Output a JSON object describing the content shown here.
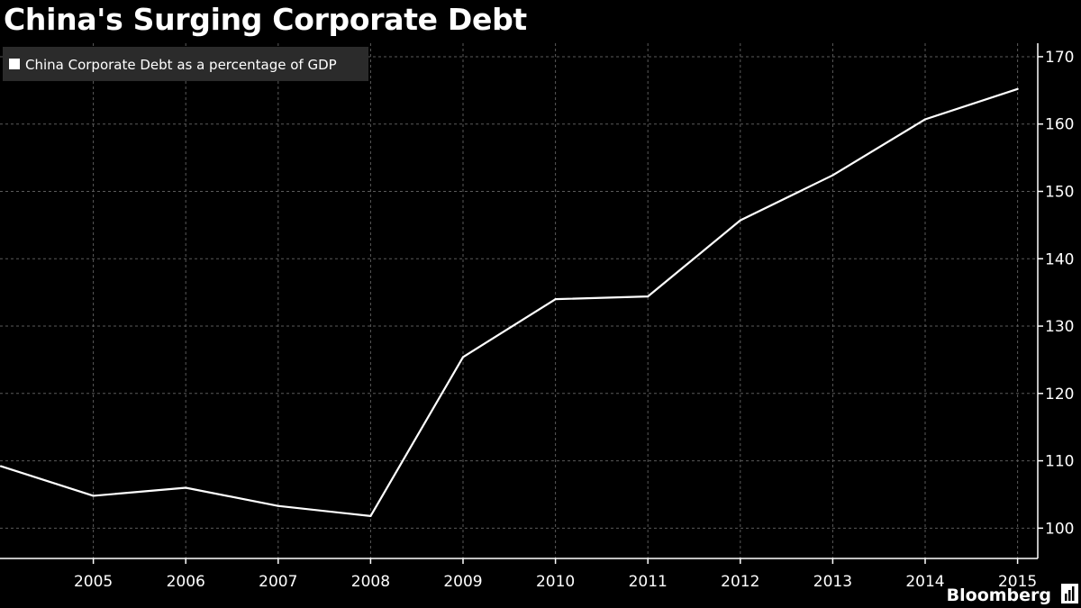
{
  "chart_data": {
    "type": "line",
    "title": "China's Surging Corporate Debt",
    "x": [
      "2004",
      "2005",
      "2006",
      "2007",
      "2008",
      "2009",
      "2010",
      "2011",
      "2012",
      "2013",
      "2014",
      "2015"
    ],
    "x_tick_labels": [
      "2005",
      "2006",
      "2007",
      "2008",
      "2009",
      "2010",
      "2011",
      "2012",
      "2013",
      "2014",
      "2015"
    ],
    "series": [
      {
        "name": "China Corporate Debt as a percentage of GDP",
        "values": [
          109.2,
          104.8,
          106.0,
          103.3,
          101.8,
          125.4,
          134.0,
          134.4,
          145.7,
          152.4,
          160.7,
          165.2
        ]
      }
    ],
    "y_ticks": [
      100,
      110,
      120,
      130,
      140,
      150,
      160,
      170
    ],
    "ylim": [
      95.5,
      172
    ],
    "xlim": [
      "2004",
      "2015"
    ],
    "y_axis_side": "right",
    "grid": true,
    "legend_position": "top-left",
    "xlabel": "",
    "ylabel": "",
    "colors": {
      "background": "#000000",
      "line": "#ffffff",
      "grid": "#5a5a5a",
      "legend_bg": "#2b2b2b"
    }
  },
  "branding": {
    "source": "Bloomberg"
  }
}
